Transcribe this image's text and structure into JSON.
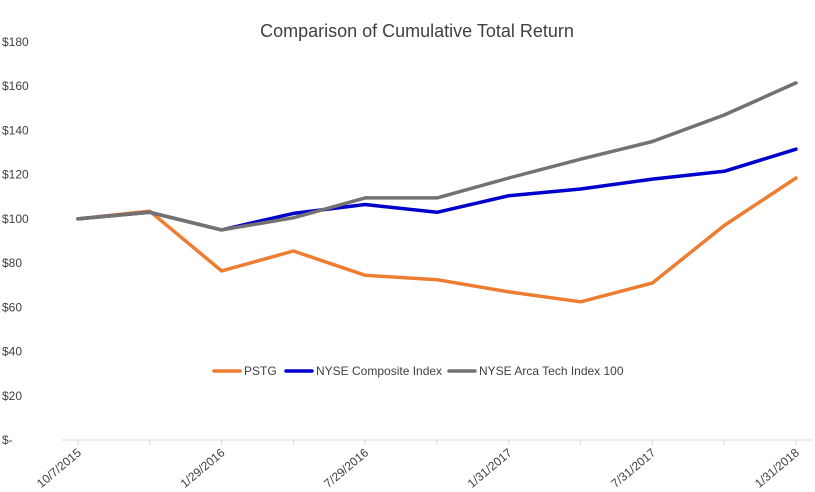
{
  "chart_data": {
    "type": "line",
    "title": "Comparison of Cumulative Total Return",
    "xlabel": "",
    "ylabel": "",
    "x": [
      "10/7/2015",
      "",
      "1/29/2016",
      "",
      "7/29/2016",
      "",
      "1/31/2017",
      "",
      "7/31/2017",
      "",
      "1/31/2018"
    ],
    "x_tick_labels": [
      "10/7/2015",
      "1/29/2016",
      "7/29/2016",
      "1/31/2017",
      "7/31/2017",
      "1/31/2018"
    ],
    "y_tick_labels": [
      "$-",
      "$20",
      "$40",
      "$60",
      "$80",
      "$100",
      "$120",
      "$140",
      "$160",
      "$180"
    ],
    "ylim": [
      0,
      180
    ],
    "grid": false,
    "legend_position": "center",
    "series": [
      {
        "name": "PSTG",
        "color": "#ED7D31",
        "values": [
          100,
          103.5,
          76.5,
          85.5,
          74.5,
          72.5,
          67,
          62.5,
          71,
          97,
          118.5
        ]
      },
      {
        "name": "NYSE Composite Index",
        "color": "#0000CC",
        "values": [
          100,
          103,
          95,
          102.5,
          106.5,
          103,
          110.5,
          113.5,
          118,
          121.5,
          131.5
        ]
      },
      {
        "name": "NYSE Arca Tech Index 100",
        "color": "#767171",
        "values": [
          100,
          103,
          95,
          100.5,
          109.5,
          109.5,
          118.5,
          127,
          135,
          147,
          161.5
        ]
      }
    ]
  }
}
